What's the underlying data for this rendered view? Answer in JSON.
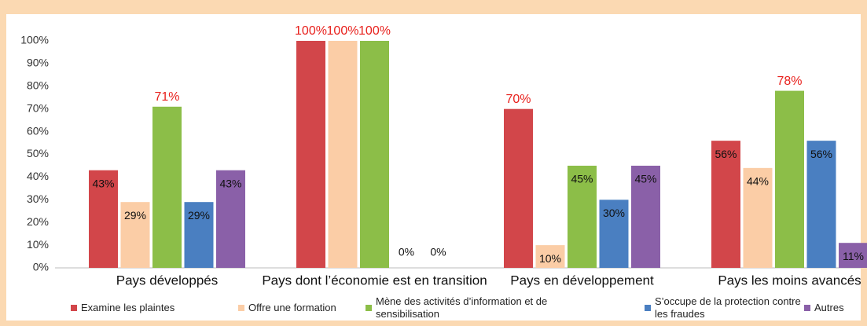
{
  "chart_data": {
    "type": "bar",
    "categories": [
      "Pays développés",
      "Pays dont l’économie est en transition",
      "Pays en développement",
      "Pays les moins avancés"
    ],
    "series": [
      {
        "name": "Examine les plaintes",
        "color": "#d2464a",
        "values": [
          43,
          100,
          70,
          56
        ],
        "value_labels": [
          "43%",
          "100%",
          "70%",
          "56%"
        ]
      },
      {
        "name": "Offre une formation",
        "color": "#fbcda6",
        "values": [
          29,
          100,
          10,
          44
        ],
        "value_labels": [
          "29%",
          "100%",
          "10%",
          "44%"
        ]
      },
      {
        "name": "Mène des activités d’information et de sensibilisation",
        "color": "#8cbe48",
        "values": [
          71,
          100,
          45,
          78
        ],
        "value_labels": [
          "71%",
          "100%",
          "45%",
          "78%"
        ]
      },
      {
        "name": "S’occupe de la protection contre les fraudes",
        "color": "#4a7fc1",
        "values": [
          29,
          0,
          30,
          56
        ],
        "value_labels": [
          "29%",
          "0%",
          "30%",
          "56%"
        ]
      },
      {
        "name": "Autres",
        "color": "#8a60a8",
        "values": [
          43,
          0,
          45,
          11
        ],
        "value_labels": [
          "43%",
          "0%",
          "45%",
          "11%"
        ]
      }
    ],
    "ylim": [
      0,
      100
    ],
    "yticks": [
      {
        "value": 0,
        "label": "0%"
      },
      {
        "value": 10,
        "label": "10%"
      },
      {
        "value": 20,
        "label": "20%"
      },
      {
        "value": 30,
        "label": "30%"
      },
      {
        "value": 40,
        "label": "40%"
      },
      {
        "value": 50,
        "label": "50%"
      },
      {
        "value": 60,
        "label": "60%"
      },
      {
        "value": 70,
        "label": "70%"
      },
      {
        "value": 80,
        "label": "80%"
      },
      {
        "value": 90,
        "label": "90%"
      },
      {
        "value": 100,
        "label": "100%"
      }
    ],
    "grid": false,
    "legend": "bottom"
  }
}
